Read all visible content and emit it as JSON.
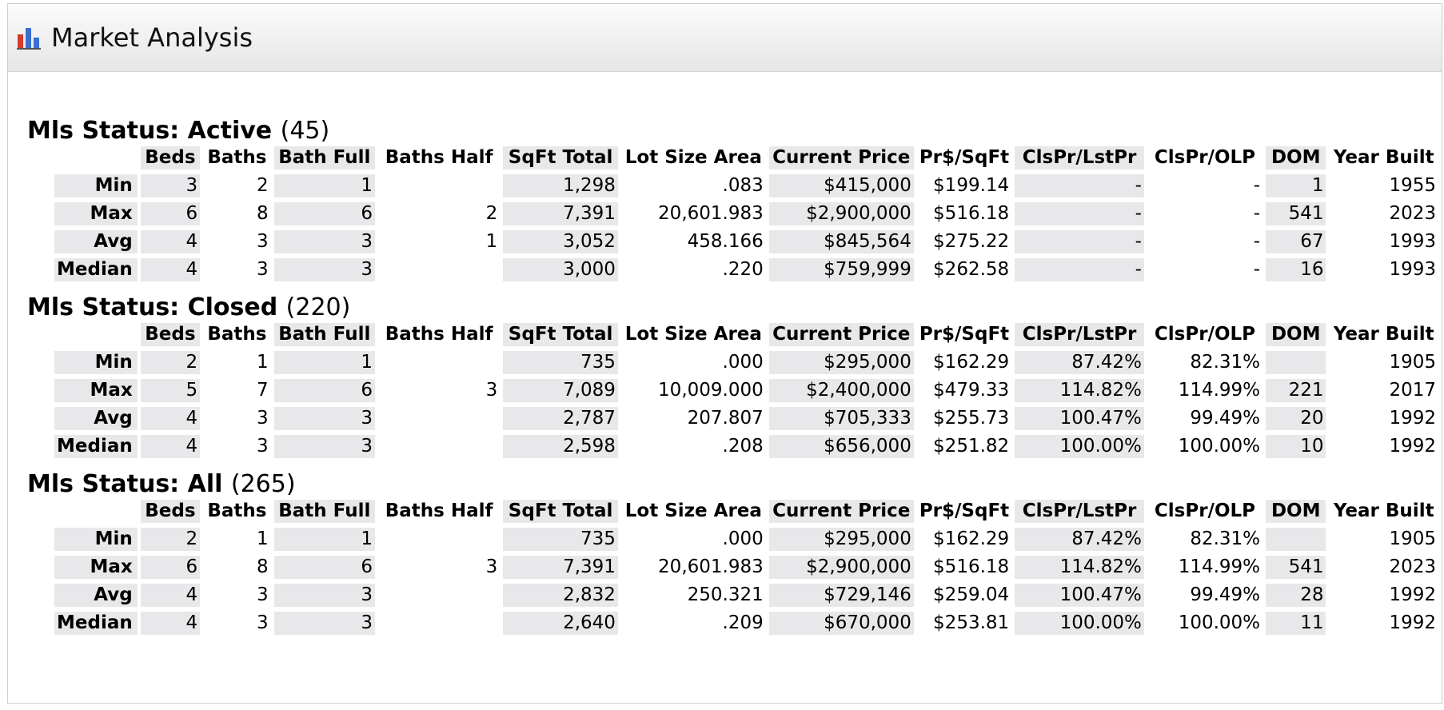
{
  "header": {
    "title": "Market Analysis",
    "icon": "bar-chart-icon"
  },
  "columns": [
    "Beds",
    "Baths",
    "Bath Full",
    "Baths Half",
    "SqFt Total",
    "Lot Size Area",
    "Current Price",
    "Pr$/SqFt",
    "ClsPr/LstPr",
    "ClsPr/OLP",
    "DOM",
    "Year Built"
  ],
  "sections": [
    {
      "label": "Mls Status: Active",
      "count": "(45)",
      "rows": [
        {
          "label": "Min",
          "cells": [
            "3",
            "2",
            "1",
            "",
            "1,298",
            ".083",
            "$415,000",
            "$199.14",
            "-",
            "-",
            "1",
            "1955"
          ]
        },
        {
          "label": "Max",
          "cells": [
            "6",
            "8",
            "6",
            "2",
            "7,391",
            "20,601.983",
            "$2,900,000",
            "$516.18",
            "-",
            "-",
            "541",
            "2023"
          ]
        },
        {
          "label": "Avg",
          "cells": [
            "4",
            "3",
            "3",
            "1",
            "3,052",
            "458.166",
            "$845,564",
            "$275.22",
            "-",
            "-",
            "67",
            "1993"
          ]
        },
        {
          "label": "Median",
          "cells": [
            "4",
            "3",
            "3",
            "",
            "3,000",
            ".220",
            "$759,999",
            "$262.58",
            "-",
            "-",
            "16",
            "1993"
          ]
        }
      ]
    },
    {
      "label": "Mls Status: Closed",
      "count": "(220)",
      "rows": [
        {
          "label": "Min",
          "cells": [
            "2",
            "1",
            "1",
            "",
            "735",
            ".000",
            "$295,000",
            "$162.29",
            "87.42%",
            "82.31%",
            "",
            "1905"
          ]
        },
        {
          "label": "Max",
          "cells": [
            "5",
            "7",
            "6",
            "3",
            "7,089",
            "10,009.000",
            "$2,400,000",
            "$479.33",
            "114.82%",
            "114.99%",
            "221",
            "2017"
          ]
        },
        {
          "label": "Avg",
          "cells": [
            "4",
            "3",
            "3",
            "",
            "2,787",
            "207.807",
            "$705,333",
            "$255.73",
            "100.47%",
            "99.49%",
            "20",
            "1992"
          ]
        },
        {
          "label": "Median",
          "cells": [
            "4",
            "3",
            "3",
            "",
            "2,598",
            ".208",
            "$656,000",
            "$251.82",
            "100.00%",
            "100.00%",
            "10",
            "1992"
          ]
        }
      ]
    },
    {
      "label": "Mls Status: All",
      "count": "(265)",
      "rows": [
        {
          "label": "Min",
          "cells": [
            "2",
            "1",
            "1",
            "",
            "735",
            ".000",
            "$295,000",
            "$162.29",
            "87.42%",
            "82.31%",
            "",
            "1905"
          ]
        },
        {
          "label": "Max",
          "cells": [
            "6",
            "8",
            "6",
            "3",
            "7,391",
            "20,601.983",
            "$2,900,000",
            "$516.18",
            "114.82%",
            "114.99%",
            "541",
            "2023"
          ]
        },
        {
          "label": "Avg",
          "cells": [
            "4",
            "3",
            "3",
            "",
            "2,832",
            "250.321",
            "$729,146",
            "$259.04",
            "100.47%",
            "99.49%",
            "28",
            "1992"
          ]
        },
        {
          "label": "Median",
          "cells": [
            "4",
            "3",
            "3",
            "",
            "2,640",
            ".209",
            "$670,000",
            "$253.81",
            "100.00%",
            "100.00%",
            "11",
            "1992"
          ]
        }
      ]
    }
  ]
}
